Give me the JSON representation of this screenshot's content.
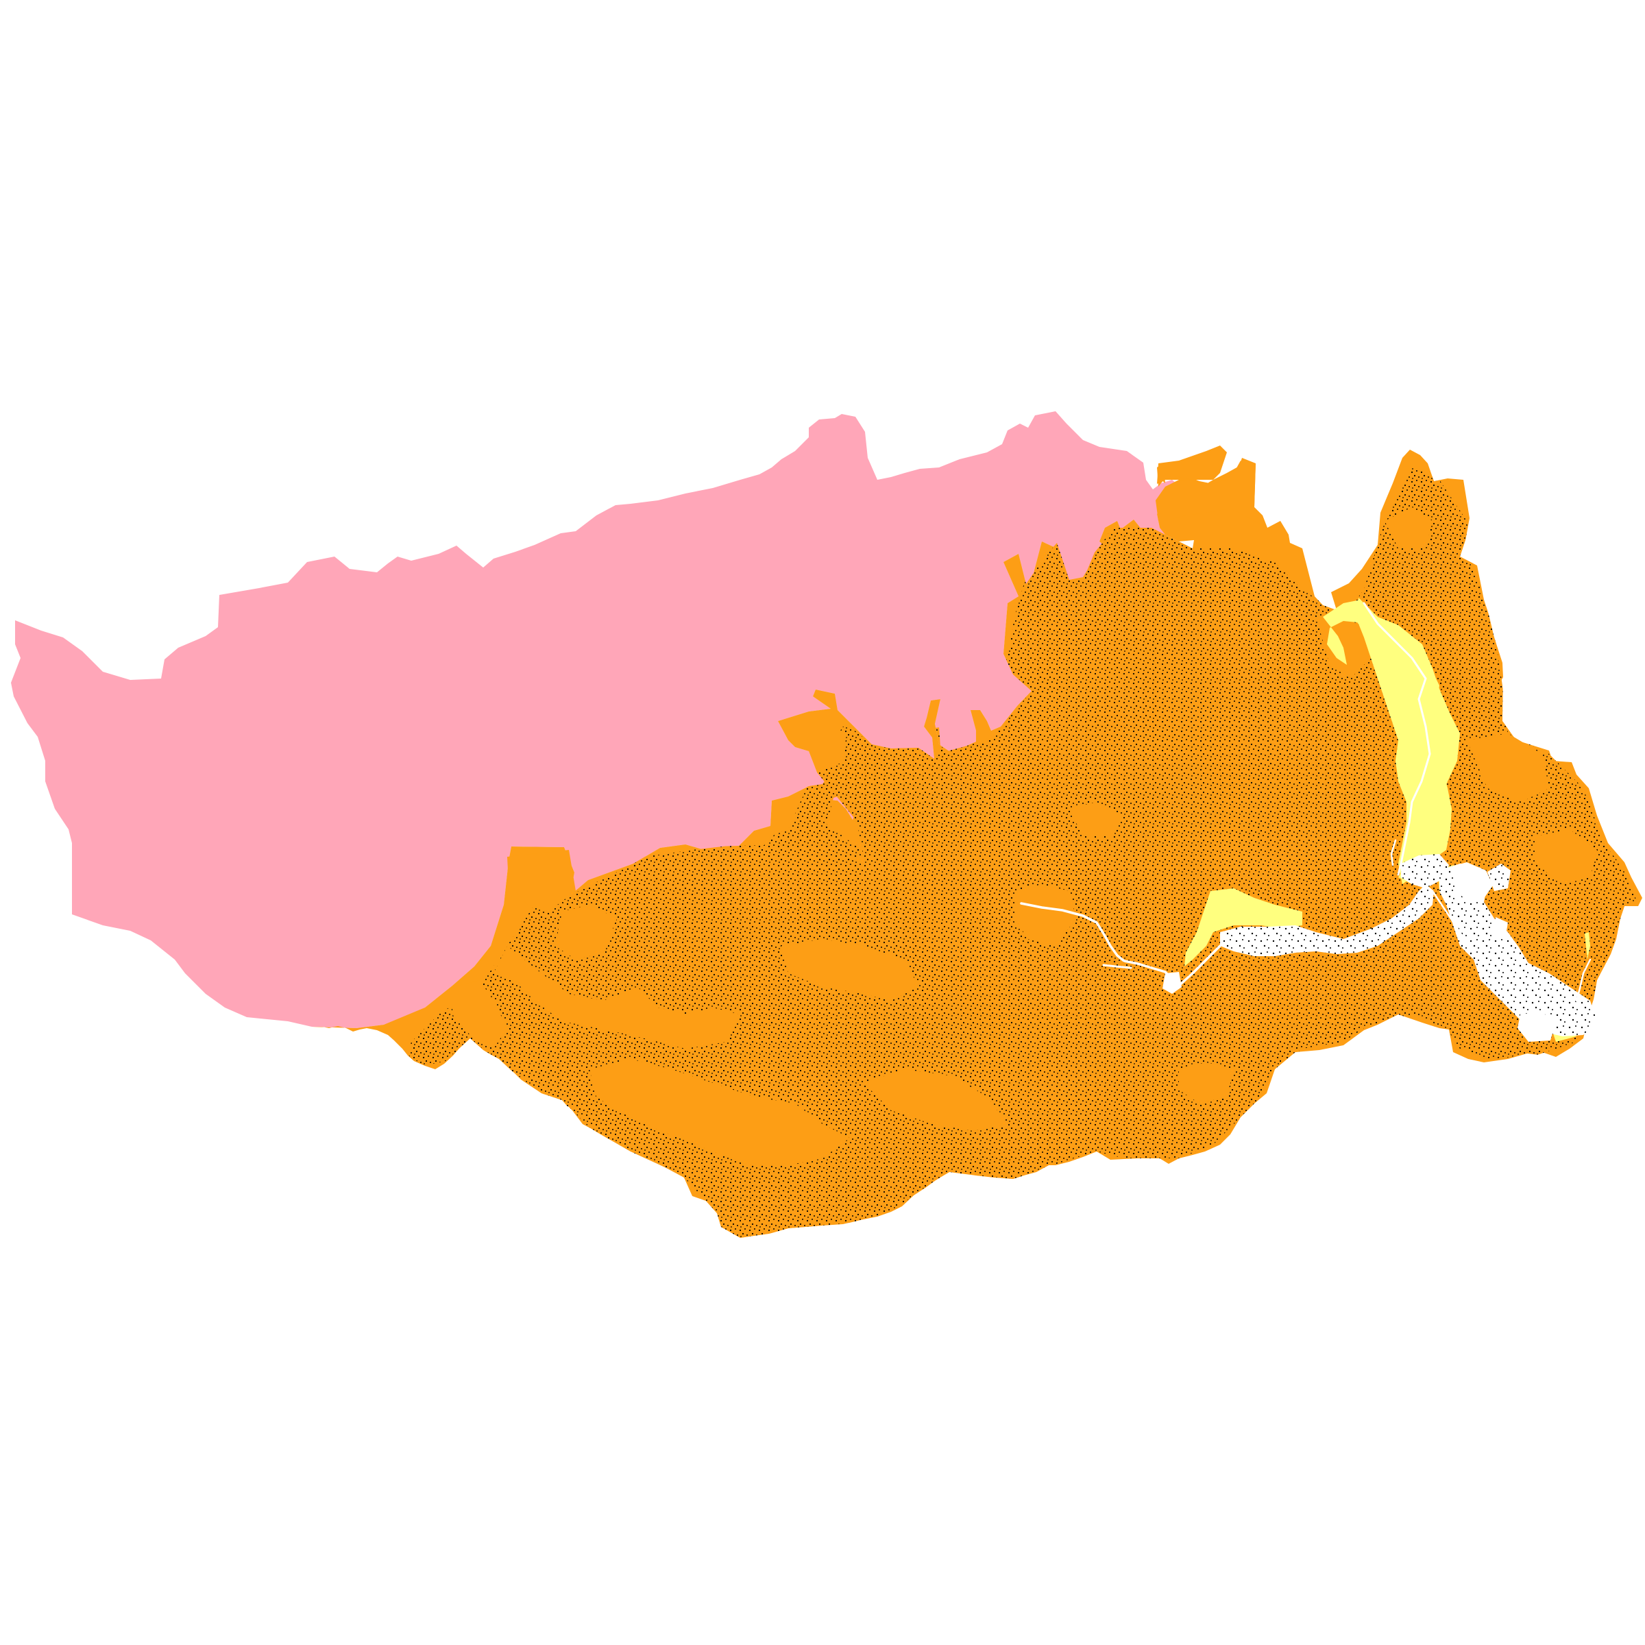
{
  "map": {
    "background_color": "#ffffff",
    "zones": [
      {
        "id": "pink-zone",
        "color": "#ffa6b8",
        "pattern": "none"
      },
      {
        "id": "orange-zone",
        "color": "#fd9e15",
        "pattern": "none"
      },
      {
        "id": "orange-stippled-zone",
        "color": "#fd9e15",
        "pattern": "dense-black-stipple"
      },
      {
        "id": "yellow-zone",
        "color": "#ffff7f",
        "pattern": "none"
      },
      {
        "id": "white-stippled-zone",
        "color": "#ffffff",
        "pattern": "sparse-black-stipple"
      },
      {
        "id": "river-channel",
        "color": "#ffffff",
        "pattern": "none"
      }
    ],
    "stipple_color": "#000000"
  }
}
